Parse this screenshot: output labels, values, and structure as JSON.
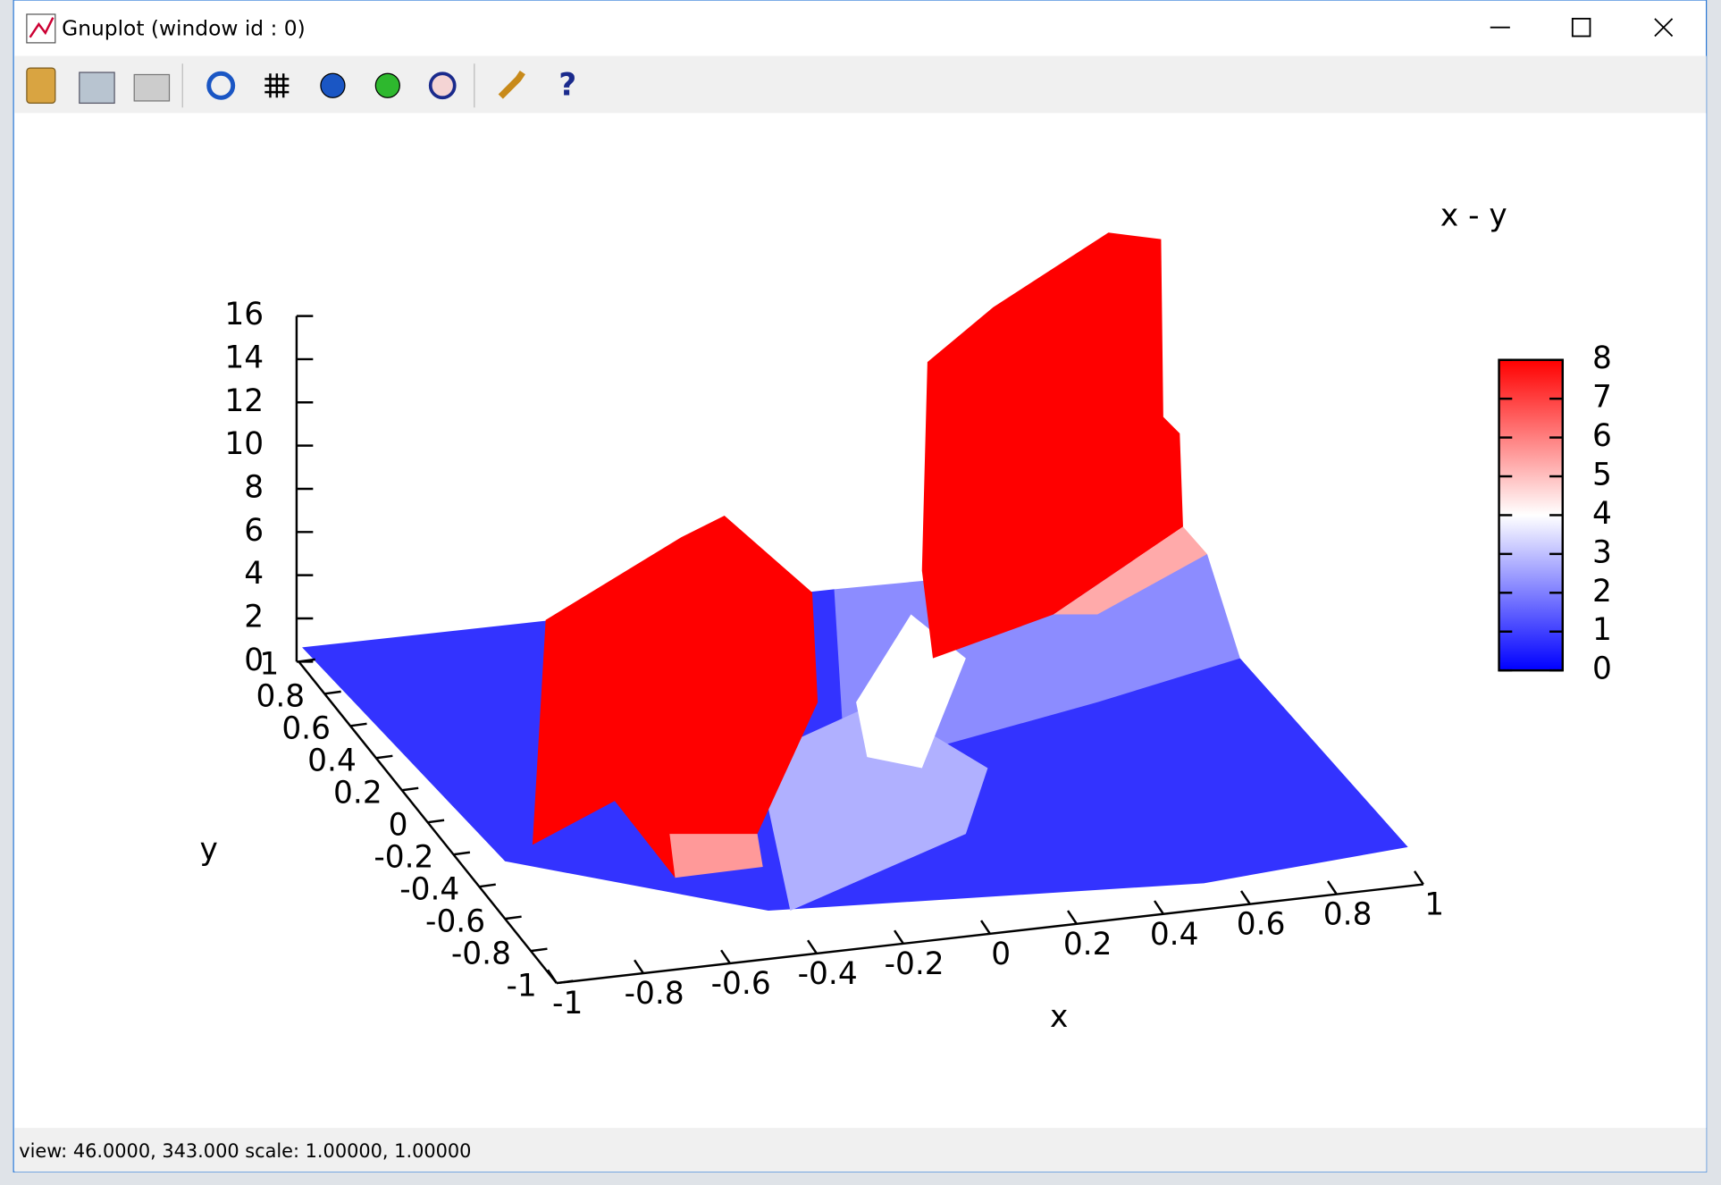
{
  "window": {
    "title": "Gnuplot (window id : 0)"
  },
  "plot": {
    "key": "x - y",
    "x_label": "x",
    "y_label": "y",
    "z_ticks": [
      "16",
      "14",
      "12",
      "10",
      "8",
      "6",
      "4",
      "2",
      "0"
    ],
    "y_ticks": [
      "1",
      "0.8",
      "0.6",
      "0.4",
      "0.2",
      "0",
      "-0.2",
      "-0.4",
      "-0.6",
      "-0.8",
      "-1"
    ],
    "x_ticks": [
      "-1",
      "-0.8",
      "-0.6",
      "-0.4",
      "-0.2",
      "0",
      "0.2",
      "0.4",
      "0.6",
      "0.8",
      "1"
    ],
    "colorbar_ticks": [
      "8",
      "7",
      "6",
      "5",
      "4",
      "3",
      "2",
      "1",
      "0"
    ]
  },
  "status_bar": "view:  46.0000,  343.000   scale:  1.00000,  1.00000"
}
